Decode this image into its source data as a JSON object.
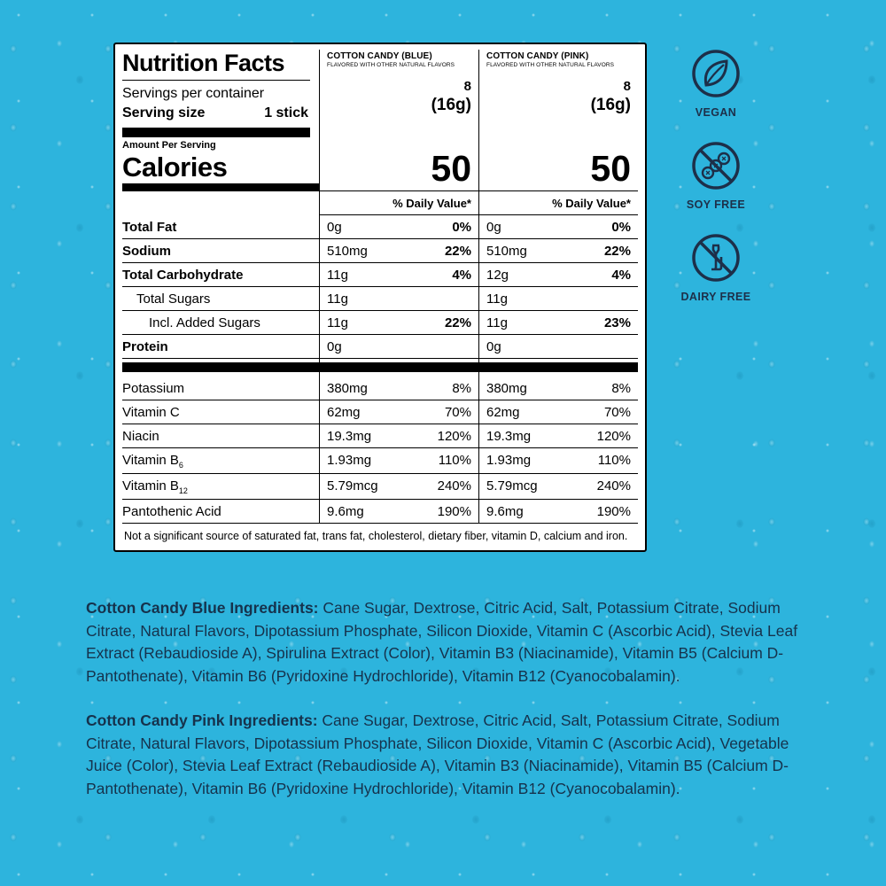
{
  "colors": {
    "background": "#2db4dd",
    "badge": "#1d2f49",
    "ingredients_text": "#16324c"
  },
  "panel": {
    "title": "Nutrition Facts",
    "servings_label": "Servings per container",
    "serving_size_label": "Serving size",
    "serving_size_value": "1 stick",
    "amount_per_serving": "Amount Per Serving",
    "calories_label": "Calories",
    "daily_value_header": "% Daily Value*",
    "columns": [
      {
        "name": "COTTON CANDY (BLUE)",
        "subtitle": "FLAVORED WITH OTHER NATURAL FLAVORS",
        "servings": "8",
        "serving_size": "(16g)",
        "calories": "50"
      },
      {
        "name": "COTTON CANDY (PINK)",
        "subtitle": "FLAVORED WITH OTHER NATURAL FLAVORS",
        "servings": "8",
        "serving_size": "(16g)",
        "calories": "50"
      }
    ],
    "rows": [
      {
        "label": "Total Fat",
        "bold": true,
        "dv_bold": true,
        "values": [
          {
            "amount": "0g",
            "dv": "0%"
          },
          {
            "amount": "0g",
            "dv": "0%"
          }
        ]
      },
      {
        "label": "Sodium",
        "bold": true,
        "dv_bold": true,
        "values": [
          {
            "amount": "510mg",
            "dv": "22%"
          },
          {
            "amount": "510mg",
            "dv": "22%"
          }
        ]
      },
      {
        "label": "Total Carbohydrate",
        "bold": true,
        "dv_bold": true,
        "values": [
          {
            "amount": "11g",
            "dv": "4%"
          },
          {
            "amount": "12g",
            "dv": "4%"
          }
        ]
      },
      {
        "label": "Total Sugars",
        "indent": 1,
        "values": [
          {
            "amount": "11g",
            "dv": ""
          },
          {
            "amount": "11g",
            "dv": ""
          }
        ]
      },
      {
        "label": "Incl. Added Sugars",
        "indent": 2,
        "dv_bold": true,
        "values": [
          {
            "amount": "11g",
            "dv": "22%"
          },
          {
            "amount": "11g",
            "dv": "23%"
          }
        ]
      },
      {
        "label": "Protein",
        "bold": true,
        "values": [
          {
            "amount": "0g",
            "dv": ""
          },
          {
            "amount": "0g",
            "dv": ""
          }
        ]
      },
      {
        "type": "bar"
      },
      {
        "label": "Potassium",
        "values": [
          {
            "amount": "380mg",
            "dv": "8%"
          },
          {
            "amount": "380mg",
            "dv": "8%"
          }
        ]
      },
      {
        "label": "Vitamin C",
        "values": [
          {
            "amount": "62mg",
            "dv": "70%"
          },
          {
            "amount": "62mg",
            "dv": "70%"
          }
        ]
      },
      {
        "label": "Niacin",
        "values": [
          {
            "amount": "19.3mg",
            "dv": "120%"
          },
          {
            "amount": "19.3mg",
            "dv": "120%"
          }
        ]
      },
      {
        "label": "Vitamin B",
        "subscript": "6",
        "values": [
          {
            "amount": "1.93mg",
            "dv": "110%"
          },
          {
            "amount": "1.93mg",
            "dv": "110%"
          }
        ]
      },
      {
        "label": "Vitamin B",
        "subscript": "12",
        "values": [
          {
            "amount": "5.79mcg",
            "dv": "240%"
          },
          {
            "amount": "5.79mcg",
            "dv": "240%"
          }
        ]
      },
      {
        "label": "Pantothenic Acid",
        "values": [
          {
            "amount": "9.6mg",
            "dv": "190%"
          },
          {
            "amount": "9.6mg",
            "dv": "190%"
          }
        ]
      }
    ],
    "footnote": "Not a significant source of saturated fat, trans fat, cholesterol, dietary fiber, vitamin D, calcium and iron."
  },
  "badges": [
    {
      "label": "VEGAN",
      "icon": "vegan-leaf-icon"
    },
    {
      "label": "SOY FREE",
      "icon": "no-soy-icon"
    },
    {
      "label": "DAIRY FREE",
      "icon": "no-dairy-icon"
    }
  ],
  "ingredients": [
    {
      "title": "Cotton Candy Blue Ingredients:",
      "text": " Cane Sugar, Dextrose, Citric Acid, Salt, Potassium Citrate, Sodium Citrate, Natural Flavors, Dipotassium Phosphate, Silicon Dioxide, Vitamin C (Ascorbic Acid), Stevia Leaf Extract (Rebaudioside A), Spirulina Extract (Color), Vitamin B3 (Niacinamide), Vitamin B5 (Calcium D-Pantothenate), Vitamin B6 (Pyridoxine Hydrochloride), Vitamin B12 (Cyanocobalamin)."
    },
    {
      "title": "Cotton Candy Pink Ingredients:",
      "text": " Cane Sugar, Dextrose, Citric Acid, Salt, Potassium Citrate, Sodium Citrate, Natural Flavors, Dipotassium Phosphate, Silicon Dioxide, Vitamin C (Ascorbic Acid), Vegetable Juice (Color), Stevia Leaf Extract (Rebaudioside A), Vitamin B3 (Niacinamide), Vitamin B5 (Calcium D-Pantothenate), Vitamin B6 (Pyridoxine Hydrochloride), Vitamin B12 (Cyanocobalamin)."
    }
  ]
}
